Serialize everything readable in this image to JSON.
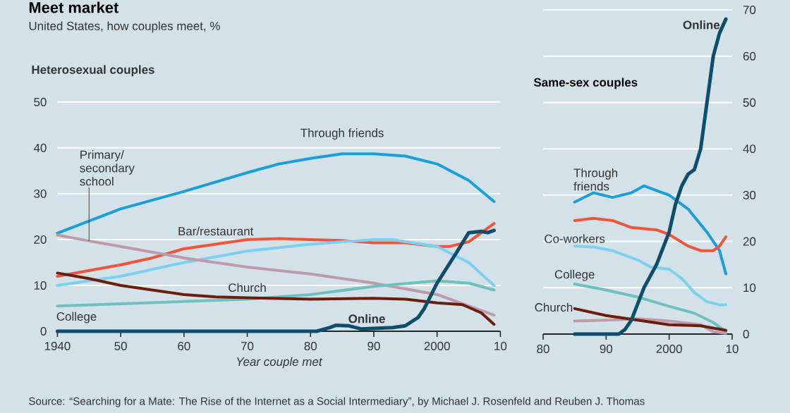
{
  "chart_data": [
    {
      "type": "line",
      "title": "Meet market",
      "subtitle": "United States, how couples meet, %",
      "xlabel": "Year couple met",
      "annotations": [
        "Heterosexual couples",
        "Source: “Searching for a Mate: The Rise of the Internet as a Social Intermediary”, by Michael J. Rosenfeld and Reuben J. Thomas"
      ],
      "xlim": [
        1940,
        2010
      ],
      "ylim": [
        0,
        50
      ],
      "xticks": [
        1940,
        {
          "value": 1950,
          "label": "50"
        },
        {
          "value": 1960,
          "label": "60"
        },
        {
          "value": 1970,
          "label": "70"
        },
        {
          "value": 1980,
          "label": "80"
        },
        {
          "value": 1990,
          "label": "90"
        },
        2000,
        {
          "value": 2010,
          "label": "10"
        }
      ],
      "yticks": [
        0,
        10,
        20,
        30,
        40,
        50
      ],
      "grid": "y",
      "series": [
        {
          "name": "Through friends",
          "color": "#1a9fd9",
          "x": [
            1940,
            1950,
            1960,
            1970,
            1975,
            1980,
            1985,
            1990,
            1995,
            2000,
            2005,
            2009
          ],
          "values": [
            21.4,
            26.7,
            30.5,
            34.6,
            36.5,
            37.7,
            38.7,
            38.7,
            38.2,
            36.5,
            32.9,
            28.3
          ]
        },
        {
          "name": "Bar/restaurant",
          "color": "#f0553a",
          "x": [
            1940,
            1950,
            1955,
            1960,
            1965,
            1970,
            1975,
            1980,
            1985,
            1990,
            1995,
            2000,
            2002,
            2005,
            2009
          ],
          "values": [
            12,
            14.5,
            16,
            18,
            19,
            20,
            20.2,
            20,
            19.8,
            19.3,
            19.3,
            18.5,
            18.5,
            19.5,
            23.5
          ]
        },
        {
          "color": "#7ed0f0",
          "x": [
            1940,
            1950,
            1960,
            1970,
            1980,
            1990,
            1993,
            2000,
            2005,
            2009
          ],
          "values": [
            10,
            12,
            15,
            17.5,
            19,
            20,
            20,
            18.5,
            15,
            10
          ]
        },
        {
          "name": "Primary/ secondary school",
          "color": "#bf9aa8",
          "x": [
            1940,
            1945,
            1950,
            1960,
            1970,
            1980,
            1990,
            2000,
            2009
          ],
          "values": [
            21,
            19.7,
            18.5,
            16,
            14,
            12.5,
            10.5,
            8,
            3.5
          ]
        },
        {
          "name": "College",
          "color": "#6fc1bd",
          "x": [
            1940,
            1960,
            1970,
            1980,
            1990,
            2000,
            2005,
            2009
          ],
          "values": [
            5.5,
            6.5,
            7,
            8,
            9.8,
            11,
            10.5,
            9
          ]
        },
        {
          "name": "Church",
          "color": "#6b1e0c",
          "x": [
            1940,
            1945,
            1950,
            1955,
            1960,
            1965,
            1970,
            1980,
            1990,
            1995,
            2000,
            2004,
            2007,
            2009
          ],
          "values": [
            12.7,
            11.5,
            10,
            9,
            8,
            7.5,
            7.3,
            7,
            7.2,
            7,
            6.2,
            5.8,
            4,
            1.5
          ]
        },
        {
          "name": "Online",
          "color": "#0e4d6b",
          "x": [
            1940,
            1981,
            1983,
            1984,
            1986,
            1988,
            1990,
            1993,
            1995,
            1997,
            1998,
            2000,
            2003,
            2005,
            2007,
            2008,
            2009
          ],
          "values": [
            0,
            0,
            0.8,
            1.3,
            1.2,
            0.5,
            0.6,
            0.8,
            1.2,
            3,
            5,
            10.5,
            17,
            21.5,
            21.8,
            21.5,
            22
          ]
        }
      ]
    },
    {
      "type": "line",
      "title": "Same-sex couples",
      "xlim": [
        1980,
        2010
      ],
      "ylim": [
        0,
        70
      ],
      "xticks": [
        {
          "value": 1980,
          "label": "80"
        },
        {
          "value": 1990,
          "label": "90"
        },
        2000,
        {
          "value": 2010,
          "label": "10"
        }
      ],
      "yticks": [
        0,
        10,
        20,
        30,
        40,
        50,
        60,
        70
      ],
      "grid": "y",
      "series": [
        {
          "name": "Through friends",
          "color": "#1a9fd9",
          "x": [
            1985,
            1988,
            1991,
            1994,
            1996,
            1998,
            2000,
            2003,
            2006,
            2008,
            2009
          ],
          "values": [
            28.5,
            30.5,
            29.5,
            30.5,
            32,
            31,
            30,
            27,
            22,
            18,
            13
          ]
        },
        {
          "color": "#f0553a",
          "x": [
            1985,
            1988,
            1991,
            1994,
            1998,
            2000,
            2003,
            2005,
            2007,
            2008,
            2009
          ],
          "values": [
            24.5,
            25,
            24.5,
            23,
            22.5,
            21.5,
            19,
            18,
            18,
            19,
            21
          ]
        },
        {
          "name": "Co-workers",
          "color": "#7ed0f0",
          "x": [
            1985,
            1988,
            1991,
            1995,
            1997,
            2000,
            2002,
            2004,
            2006,
            2008,
            2009
          ],
          "values": [
            19,
            18.8,
            18,
            16,
            14.5,
            14,
            12,
            9,
            7,
            6.3,
            6.3
          ]
        },
        {
          "color": "#bf9aa8",
          "x": [
            1985,
            1990,
            1995,
            2000,
            2005,
            2007,
            2009
          ],
          "values": [
            2.8,
            3,
            3.3,
            2.8,
            2,
            0.5,
            0.2
          ]
        },
        {
          "name": "College",
          "color": "#6fc1bd",
          "x": [
            1985,
            1990,
            1995,
            2000,
            2004,
            2007,
            2009
          ],
          "values": [
            10.8,
            9.5,
            8,
            6,
            4.5,
            2.5,
            0.5
          ]
        },
        {
          "name": "Church",
          "color": "#6b1e0c",
          "x": [
            1985,
            1990,
            1995,
            2000,
            2005,
            2009
          ],
          "values": [
            5.5,
            4,
            3,
            2,
            1.8,
            0.8
          ]
        },
        {
          "name": "Online",
          "color": "#0e4d6b",
          "x": [
            1985,
            1992,
            1993,
            1994,
            1995,
            1996,
            1998,
            2000,
            2001,
            2002,
            2003,
            2004,
            2005,
            2006,
            2007,
            2008,
            2009
          ],
          "values": [
            0,
            0,
            1,
            3,
            6.5,
            10,
            15,
            22,
            28,
            32,
            34.5,
            35.5,
            40,
            50,
            60,
            65,
            68
          ]
        }
      ]
    }
  ]
}
